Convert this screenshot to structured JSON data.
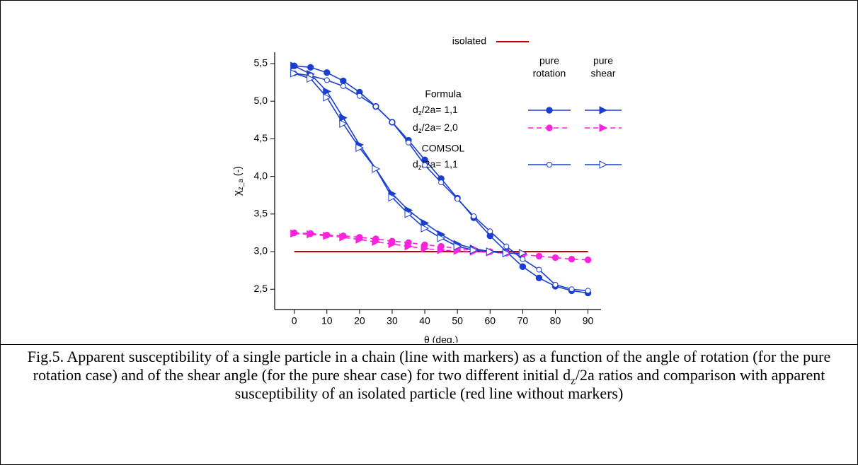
{
  "chart_data": {
    "type": "line",
    "x_label": "θ (deg.)",
    "y_label": [
      "χ",
      "z_a",
      " (-)"
    ],
    "xlim": [
      -6,
      94
    ],
    "xticks": [
      0,
      10,
      20,
      30,
      40,
      50,
      60,
      70,
      80,
      90
    ],
    "ylim": [
      2.23,
      5.65
    ],
    "yticks": [
      {
        "value": 2.5,
        "label": "2,5"
      },
      {
        "value": 3.0,
        "label": "3,0"
      },
      {
        "value": 3.5,
        "label": "3,5"
      },
      {
        "value": 4.0,
        "label": "4,0"
      },
      {
        "value": 4.5,
        "label": "4,5"
      },
      {
        "value": 5.0,
        "label": "5,0"
      },
      {
        "value": 5.5,
        "label": "5,5"
      }
    ],
    "series": [
      {
        "name": "isolated",
        "color": "#c00000",
        "x": [
          0,
          90
        ],
        "values": [
          3,
          3
        ]
      }
    ],
    "columns": [
      [
        "pure",
        "rotation"
      ],
      [
        "pure",
        "shear"
      ]
    ],
    "groups": [
      {
        "name": "Formula",
        "rows": [
          {
            "label": [
              "d",
              "z",
              "/2a= 1,1"
            ],
            "color": "#1a3fd0",
            "dashed": false,
            "series": [
              {
                "marker": "filled-circle",
                "x": [
                  0,
                  5,
                  10,
                  15,
                  20,
                  25,
                  30,
                  35,
                  40,
                  45,
                  50,
                  55,
                  60,
                  65,
                  70,
                  75,
                  80,
                  85,
                  90
                ],
                "values": [
                  5.47,
                  5.45,
                  5.38,
                  5.27,
                  5.12,
                  4.93,
                  4.72,
                  4.48,
                  4.22,
                  3.97,
                  3.71,
                  3.45,
                  3.21,
                  3.0,
                  2.8,
                  2.65,
                  2.54,
                  2.48,
                  2.45
                ]
              },
              {
                "marker": "filled-triangle",
                "x": [
                  0,
                  5,
                  10,
                  15,
                  20,
                  25,
                  30,
                  35,
                  40,
                  45,
                  50,
                  55,
                  60,
                  65,
                  70
                ],
                "values": [
                  5.47,
                  5.36,
                  5.13,
                  4.78,
                  4.42,
                  4.1,
                  3.77,
                  3.55,
                  3.38,
                  3.23,
                  3.1,
                  3.04,
                  3.0,
                  2.98,
                  2.97
                ]
              }
            ]
          },
          {
            "label": [
              "d",
              "z",
              "/2a= 2,0"
            ],
            "color": "#ff22dd",
            "dashed": true,
            "series": [
              {
                "marker": "filled-circle",
                "x": [
                  0,
                  5,
                  10,
                  15,
                  20,
                  25,
                  30,
                  35,
                  40,
                  45,
                  50,
                  55,
                  60,
                  65,
                  70,
                  75,
                  80,
                  85,
                  90
                ],
                "values": [
                  3.25,
                  3.24,
                  3.22,
                  3.21,
                  3.19,
                  3.17,
                  3.14,
                  3.12,
                  3.09,
                  3.07,
                  3.04,
                  3.02,
                  3.0,
                  2.98,
                  2.96,
                  2.94,
                  2.92,
                  2.9,
                  2.89
                ]
              },
              {
                "marker": "filled-triangle",
                "x": [
                  0,
                  5,
                  10,
                  15,
                  20,
                  25,
                  30,
                  35,
                  40,
                  45,
                  50,
                  55,
                  60,
                  65,
                  70
                ],
                "values": [
                  3.24,
                  3.23,
                  3.21,
                  3.19,
                  3.16,
                  3.13,
                  3.1,
                  3.07,
                  3.04,
                  3.02,
                  3.01,
                  3.0,
                  2.99,
                  2.98,
                  2.98
                ]
              }
            ]
          }
        ]
      },
      {
        "name": "COMSOL",
        "rows": [
          {
            "label": [
              "d",
              "z",
              "/2a= 1,1"
            ],
            "color": "#1a3fd0",
            "dashed": false,
            "series": [
              {
                "marker": "open-circle",
                "x": [
                  0,
                  5,
                  10,
                  15,
                  20,
                  25,
                  30,
                  35,
                  40,
                  45,
                  50,
                  55,
                  60,
                  65,
                  70,
                  75,
                  80,
                  85,
                  90
                ],
                "values": [
                  5.37,
                  5.34,
                  5.28,
                  5.2,
                  5.07,
                  4.93,
                  4.72,
                  4.45,
                  4.15,
                  3.92,
                  3.7,
                  3.47,
                  3.27,
                  3.07,
                  2.9,
                  2.76,
                  2.56,
                  2.5,
                  2.48
                ]
              },
              {
                "marker": "open-triangle",
                "x": [
                  0,
                  5,
                  10,
                  15,
                  20,
                  25,
                  30,
                  35,
                  40,
                  45,
                  50,
                  55,
                  60,
                  65,
                  70
                ],
                "values": [
                  5.37,
                  5.3,
                  5.05,
                  4.7,
                  4.38,
                  4.1,
                  3.72,
                  3.5,
                  3.31,
                  3.18,
                  3.07,
                  3.02,
                  3.0,
                  2.98,
                  2.98
                ]
              }
            ]
          }
        ]
      }
    ]
  },
  "caption": [
    "Fig.5. Apparent susceptibility of a single particle in a chain (line with markers) as a function of the angle of rotation (for the pure rotation case) and of the shear angle (for the pure shear case) for two different initial d",
    "z",
    "/2a ratios and comparison with apparent susceptibility of an isolated particle (red line without markers)"
  ]
}
